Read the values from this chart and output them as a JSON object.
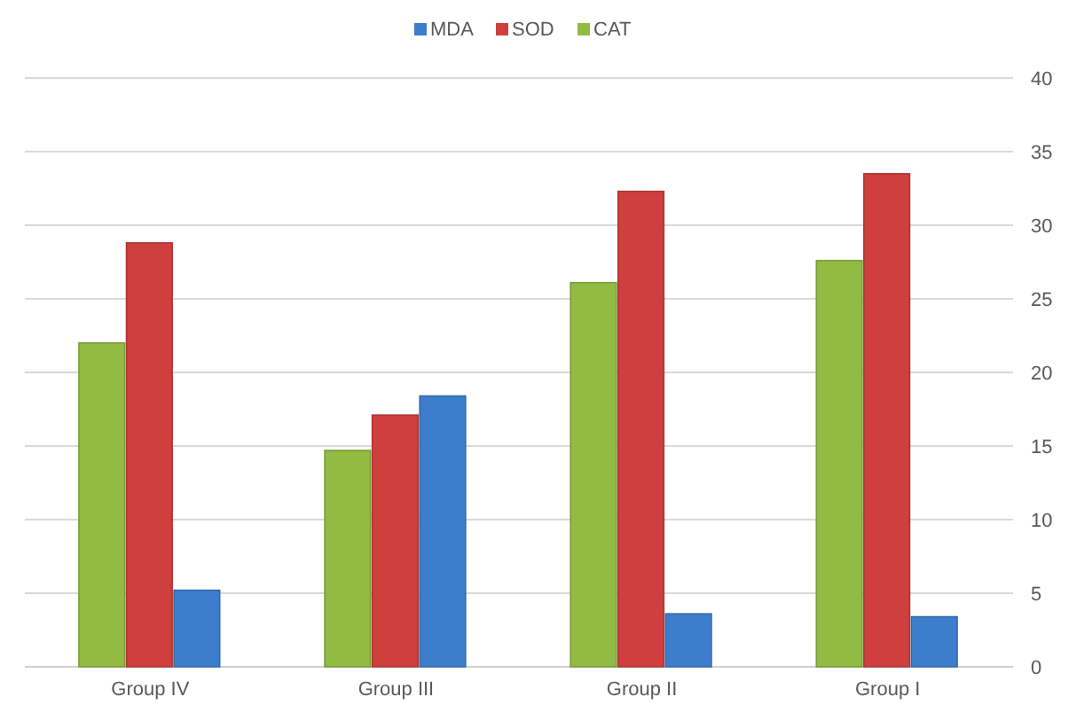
{
  "chart_data": {
    "type": "bar",
    "categories": [
      "Group IV",
      "Group III",
      "Group II",
      "Group I"
    ],
    "series": [
      {
        "name": "CAT",
        "color": "#92bb44",
        "values": [
          22,
          14.7,
          26.1,
          27.6
        ]
      },
      {
        "name": "SOD",
        "color": "#cf3f3d",
        "values": [
          28.8,
          17.1,
          32.3,
          33.5
        ]
      },
      {
        "name": "MDA",
        "color": "#3d7ecc",
        "values": [
          5.2,
          18.4,
          3.6,
          3.4
        ]
      }
    ],
    "ylim": [
      0,
      40
    ],
    "yticks": [
      0,
      5,
      10,
      15,
      20,
      25,
      30,
      35,
      40
    ],
    "grid": "y",
    "legend": "top"
  }
}
